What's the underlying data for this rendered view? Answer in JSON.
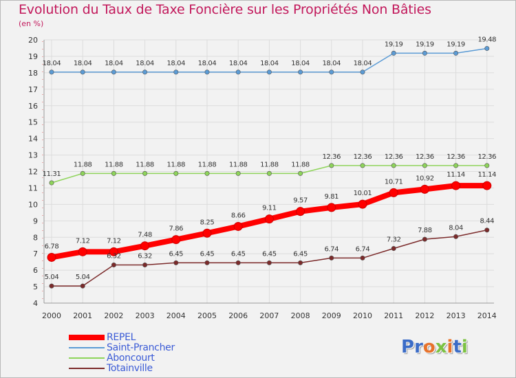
{
  "page": {
    "title": "Evolution du Taux de Taxe Foncière sur les Propriétés Non Bâties",
    "unit": "(en %)"
  },
  "logo": {
    "text": "Proxiti",
    "letter_colors": [
      "#3b6cc7",
      "#3b6cc7",
      "#e8722a",
      "#7cc242",
      "#e8722a",
      "#3b6cc7",
      "#7cc242"
    ]
  },
  "chart_data": {
    "type": "line",
    "title": "Evolution du Taux de Taxe Foncière sur les Propriétés Non Bâties",
    "ylabel": "(en %)",
    "xlabel": "",
    "x": [
      "2000",
      "2001",
      "2002",
      "2003",
      "2004",
      "2005",
      "2006",
      "2007",
      "2008",
      "2009",
      "2010",
      "2011",
      "2012",
      "2013",
      "2014"
    ],
    "ylim": [
      4,
      20
    ],
    "yticks": [
      4,
      5,
      6,
      7,
      8,
      9,
      10,
      11,
      12,
      13,
      14,
      15,
      16,
      17,
      18,
      19,
      20
    ],
    "grid": true,
    "legend_position": "bottom-left",
    "series": [
      {
        "name": "REPEL",
        "color": "#ff0000",
        "values": [
          6.78,
          7.12,
          7.12,
          7.48,
          7.86,
          8.25,
          8.66,
          9.11,
          9.57,
          9.81,
          10.01,
          10.71,
          10.92,
          11.14,
          11.14
        ],
        "labels": [
          "6.78",
          "7.12",
          "7.12",
          "7.48",
          "7.86",
          "8.25",
          "8.66",
          "9.11",
          "9.57",
          "9.81",
          "10.01",
          "10.71",
          "10.92",
          "11.14",
          "11.14"
        ]
      },
      {
        "name": "Saint-Prancher",
        "color": "#5b9bd5",
        "values": [
          18.04,
          18.04,
          18.04,
          18.04,
          18.04,
          18.04,
          18.04,
          18.04,
          18.04,
          18.04,
          18.04,
          19.19,
          19.19,
          19.19,
          19.48
        ],
        "labels": [
          "18.04",
          "18.04",
          "18.04",
          "18.04",
          "18.04",
          "18.04",
          "18.04",
          "18.04",
          "18.04",
          "18.04",
          "18.04",
          "19.19",
          "19.19",
          "19.19",
          "19.48"
        ]
      },
      {
        "name": "Aboncourt",
        "color": "#8ed45a",
        "values": [
          11.31,
          11.88,
          11.88,
          11.88,
          11.88,
          11.88,
          11.88,
          11.88,
          11.88,
          12.36,
          12.36,
          12.36,
          12.36,
          12.36,
          12.36
        ],
        "labels": [
          "11.31",
          "11.88",
          "11.88",
          "11.88",
          "11.88",
          "11.88",
          "11.88",
          "11.88",
          "11.88",
          "12.36",
          "12.36",
          "12.36",
          "12.36",
          "12.36",
          "12.36"
        ]
      },
      {
        "name": "Totainville",
        "color": "#7b2a2a",
        "values": [
          5.04,
          5.04,
          6.32,
          6.32,
          6.45,
          6.45,
          6.45,
          6.45,
          6.45,
          6.74,
          6.74,
          7.32,
          7.88,
          8.04,
          8.44
        ],
        "labels": [
          "5.04",
          "5.04",
          "6.32",
          "6.32",
          "6.45",
          "6.45",
          "6.45",
          "6.45",
          "6.45",
          "6.74",
          "6.74",
          "7.32",
          "7.88",
          "8.04",
          "8.44"
        ]
      }
    ]
  }
}
